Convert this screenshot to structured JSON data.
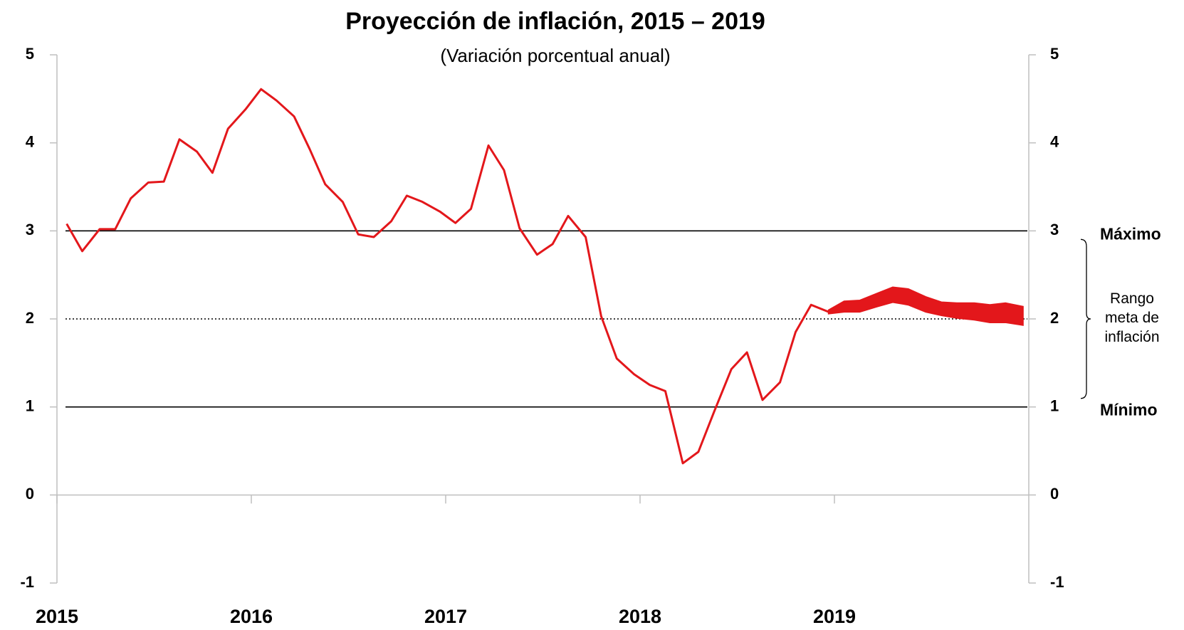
{
  "chart_data": {
    "type": "line",
    "title": "Proyección de inflación, 2015 – 2019",
    "subtitle": "(Variación porcentual anual)",
    "xlim": [
      2015,
      2020
    ],
    "xticks": [
      2015,
      2016,
      2017,
      2018,
      2019
    ],
    "ylim": [
      -1,
      5
    ],
    "yticks": [
      -1,
      0,
      1,
      2,
      3,
      4,
      5
    ],
    "grid": false,
    "series": [
      {
        "color": "#e3171b",
        "x": [
          2015.05,
          2015.13,
          2015.22,
          2015.3,
          2015.38,
          2015.47,
          2015.55,
          2015.63,
          2015.72,
          2015.8,
          2015.88,
          2015.97,
          2016.05,
          2016.13,
          2016.22,
          2016.3,
          2016.38,
          2016.47,
          2016.55,
          2016.63,
          2016.72,
          2016.8,
          2016.88,
          2016.97,
          2017.05,
          2017.13,
          2017.22,
          2017.3,
          2017.38,
          2017.47,
          2017.55,
          2017.63,
          2017.72,
          2017.8,
          2017.88,
          2017.97,
          2018.05,
          2018.13,
          2018.22,
          2018.3,
          2018.38,
          2018.47,
          2018.55,
          2018.63,
          2018.72,
          2018.8,
          2018.88,
          2018.97
        ],
        "values": [
          3.08,
          2.77,
          3.02,
          3.02,
          3.37,
          3.55,
          3.56,
          4.04,
          3.9,
          3.66,
          4.16,
          4.38,
          4.61,
          4.48,
          4.3,
          3.93,
          3.53,
          3.33,
          2.96,
          2.93,
          3.11,
          3.4,
          3.33,
          3.22,
          3.09,
          3.25,
          3.97,
          3.69,
          3.03,
          2.73,
          2.85,
          3.17,
          2.93,
          2.03,
          1.55,
          1.37,
          1.25,
          1.18,
          0.36,
          0.49,
          0.94,
          1.43,
          1.62,
          1.08,
          1.28,
          1.85,
          2.16,
          2.08
        ]
      }
    ],
    "band": {
      "color": "#e3171b",
      "x": [
        2018.97,
        2019.05,
        2019.13,
        2019.22,
        2019.3,
        2019.38,
        2019.47,
        2019.55,
        2019.63,
        2019.72,
        2019.8,
        2019.88,
        2019.97
      ],
      "lower": [
        2.06,
        2.08,
        2.08,
        2.14,
        2.19,
        2.16,
        2.08,
        2.04,
        2.01,
        1.99,
        1.96,
        1.96,
        1.93
      ],
      "upper": [
        2.1,
        2.2,
        2.21,
        2.29,
        2.36,
        2.34,
        2.25,
        2.19,
        2.18,
        2.18,
        2.16,
        2.18,
        2.14
      ]
    },
    "reference_lines": [
      {
        "value": 3,
        "label": "Máximo",
        "style": "solid"
      },
      {
        "value": 2,
        "style": "dotted"
      },
      {
        "value": 1,
        "label": "Mínimo",
        "style": "solid"
      }
    ],
    "range_label": "Rango meta de inflación"
  }
}
